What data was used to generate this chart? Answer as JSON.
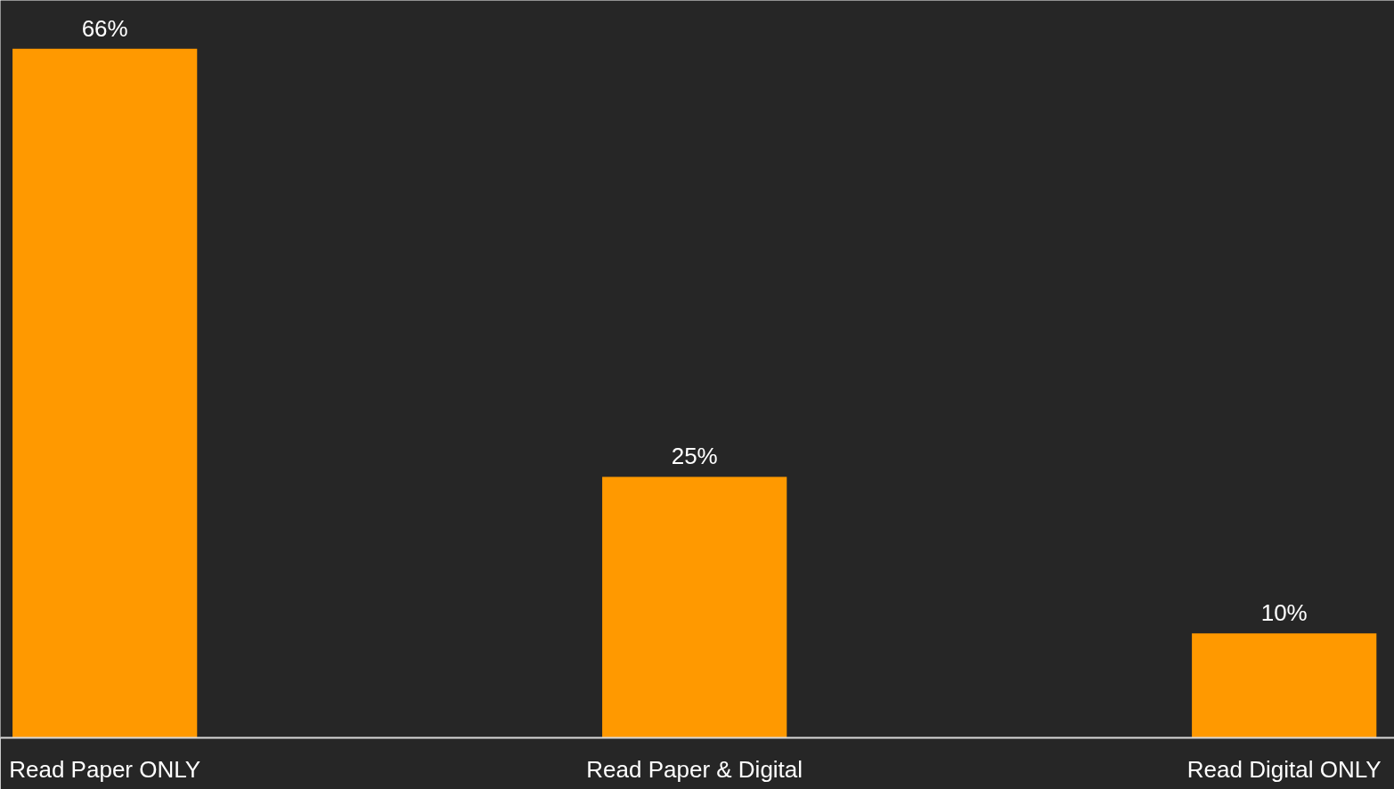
{
  "chart_data": {
    "type": "bar",
    "categories": [
      "Read Paper ONLY",
      "Read Paper & Digital",
      "Read Digital ONLY"
    ],
    "values": [
      66,
      25,
      10
    ],
    "value_labels": [
      "66%",
      "25%",
      "10%"
    ],
    "color": "#ff9900",
    "grid": false
  }
}
